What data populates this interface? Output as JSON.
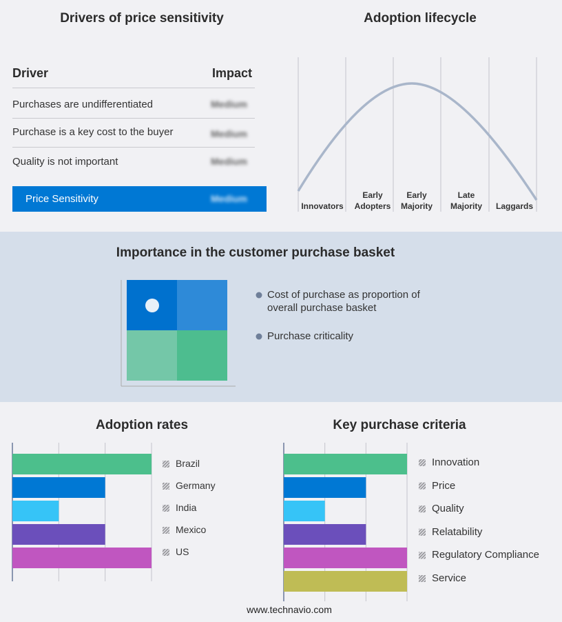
{
  "drivers": {
    "title": "Drivers of price sensitivity",
    "headers": [
      "Driver",
      "Impact"
    ],
    "rows": [
      [
        "Purchases are undifferentiated",
        "Medium"
      ],
      [
        "Purchase is a key cost to the buyer",
        "Medium"
      ],
      [
        "Quality is not important",
        "Medium"
      ]
    ],
    "summary": [
      "Price Sensitivity",
      "Medium"
    ]
  },
  "lifecycle": {
    "title": "Adoption lifecycle",
    "stages": [
      "Innovators",
      "Early Adopters",
      "Early Majority",
      "Late Majority",
      "Laggards"
    ]
  },
  "importance": {
    "title": "Importance in the customer purchase basket",
    "legend": [
      "Cost of purchase as proportion of overall purchase basket",
      "Purchase criticality"
    ]
  },
  "adoption_rates": {
    "type": "bar",
    "title": "Adoption rates",
    "categories": [
      "Brazil",
      "Germany",
      "India",
      "Mexico",
      "US"
    ],
    "values": [
      3,
      2,
      1,
      2,
      3
    ],
    "colors": [
      "#4cbf8c",
      "#0078d4",
      "#36c4f7",
      "#6b4fbb",
      "#c056c0"
    ],
    "xlim": [
      0,
      3
    ],
    "xticks": [
      0,
      1,
      2,
      3
    ]
  },
  "key_purchase_criteria": {
    "type": "bar",
    "title": "Key purchase criteria",
    "categories": [
      "Innovation",
      "Price",
      "Quality",
      "Relatability",
      "Regulatory Compliance",
      "Service"
    ],
    "values": [
      3,
      2,
      1,
      2,
      3,
      3
    ],
    "colors": [
      "#4cbf8c",
      "#0078d4",
      "#36c4f7",
      "#6b4fbb",
      "#c056c0",
      "#bfbc55"
    ],
    "xlim": [
      0,
      3
    ],
    "xticks": [
      0,
      1,
      2,
      3
    ]
  },
  "footer": "www.technavio.com"
}
